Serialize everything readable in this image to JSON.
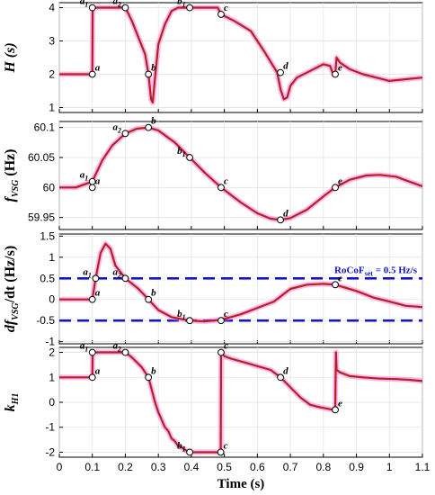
{
  "chart_data": {
    "type": "line",
    "xlabel": "Time (s)",
    "xlim": [
      0,
      1.1
    ],
    "xticks": [
      "0",
      "0.1",
      "0.2",
      "0.3",
      "0.4",
      "0.5",
      "0.6",
      "0.7",
      "0.8",
      "0.9",
      "1",
      "1.1"
    ],
    "colors": {
      "series": "#b22222",
      "glow": "#ff66d2",
      "threshold": "#1515c8",
      "marker_fill": "#ffffff"
    },
    "panels": [
      {
        "id": "H",
        "ylabel": "H (s)",
        "ylim": [
          0.85,
          4.15
        ],
        "yticks": [
          1,
          2,
          3,
          4
        ],
        "ytick_labels": [
          "1",
          "2",
          "3",
          "4"
        ],
        "x": [
          0,
          0.05,
          0.1,
          0.101,
          0.15,
          0.2,
          0.22,
          0.24,
          0.26,
          0.27,
          0.278,
          0.283,
          0.29,
          0.3,
          0.32,
          0.34,
          0.36,
          0.38,
          0.395,
          0.42,
          0.45,
          0.48,
          0.49,
          0.53,
          0.58,
          0.62,
          0.66,
          0.67,
          0.68,
          0.69,
          0.7,
          0.72,
          0.76,
          0.8,
          0.82,
          0.83,
          0.836,
          0.84,
          0.85,
          0.88,
          0.92,
          0.96,
          1.0,
          1.05,
          1.1
        ],
        "y": [
          2,
          2,
          2,
          4,
          4,
          4,
          3.6,
          3.1,
          2.6,
          2.0,
          1.25,
          1.15,
          1.9,
          2.9,
          3.5,
          3.9,
          4.0,
          4.0,
          4.0,
          4.0,
          4.0,
          4.0,
          3.8,
          3.6,
          3.3,
          2.7,
          2.05,
          1.55,
          1.25,
          1.3,
          1.65,
          1.9,
          2.1,
          2.3,
          2.25,
          2.0,
          2.0,
          2.5,
          2.35,
          2.15,
          2.0,
          1.9,
          1.8,
          1.85,
          1.9
        ],
        "markers": [
          {
            "label": "a",
            "x": 0.1,
            "y": 2.0
          },
          {
            "label": "a",
            "sub": "1",
            "x": 0.1,
            "y": 4.0
          },
          {
            "label": "a",
            "sub": "2",
            "x": 0.2,
            "y": 4.0
          },
          {
            "label": "b",
            "x": 0.27,
            "y": 2.0
          },
          {
            "label": "b",
            "sub": "1",
            "x": 0.395,
            "y": 4.0
          },
          {
            "label": "c",
            "x": 0.49,
            "y": 3.8
          },
          {
            "label": "d",
            "x": 0.67,
            "y": 2.05
          },
          {
            "label": "e",
            "x": 0.836,
            "y": 2.0
          }
        ]
      },
      {
        "id": "f",
        "ylabel": "f",
        "ylabel_sub": "VSG",
        "ylabel_unit": " (Hz)",
        "ylim": [
          59.93,
          60.11
        ],
        "yticks": [
          59.95,
          60.0,
          60.05,
          60.1
        ],
        "ytick_labels": [
          "59.95",
          "60",
          "60.05",
          "60.1"
        ],
        "x": [
          0,
          0.05,
          0.1,
          0.13,
          0.16,
          0.2,
          0.235,
          0.27,
          0.3,
          0.35,
          0.395,
          0.44,
          0.49,
          0.55,
          0.6,
          0.64,
          0.67,
          0.7,
          0.75,
          0.8,
          0.836,
          0.88,
          0.93,
          0.97,
          1.02,
          1.06,
          1.1
        ],
        "y": [
          60.0,
          60.0,
          60.01,
          60.045,
          60.07,
          60.09,
          60.098,
          60.1,
          60.095,
          60.075,
          60.05,
          60.025,
          60.0,
          59.975,
          59.957,
          59.948,
          59.946,
          59.949,
          59.963,
          59.985,
          60.0,
          60.013,
          60.02,
          60.021,
          60.018,
          60.01,
          60.002
        ],
        "markers": [
          {
            "label": "a",
            "x": 0.1,
            "y": 60.0
          },
          {
            "label": "a",
            "sub": "1",
            "x": 0.1,
            "y": 60.01
          },
          {
            "label": "a",
            "sub": "2",
            "x": 0.2,
            "y": 60.09
          },
          {
            "label": "b",
            "x": 0.27,
            "y": 60.1
          },
          {
            "label": "b",
            "sub": "1",
            "x": 0.395,
            "y": 60.05
          },
          {
            "label": "c",
            "x": 0.49,
            "y": 60.0
          },
          {
            "label": "d",
            "x": 0.67,
            "y": 59.946
          },
          {
            "label": "e",
            "x": 0.836,
            "y": 60.0
          }
        ]
      },
      {
        "id": "df",
        "ylabel": "df",
        "ylabel_sub": "VSG",
        "ylabel_unit": "/dt (Hz/s)",
        "ylim": [
          -1.05,
          1.55
        ],
        "yticks": [
          -1,
          -0.5,
          0,
          0.5,
          1,
          1.5
        ],
        "ytick_labels": [
          "-1",
          "-0.5",
          "0",
          "0.5",
          "1",
          "1.5"
        ],
        "threshold_values": [
          0.5,
          -0.5
        ],
        "threshold_label": "RoCoF",
        "threshold_label_sub": "set",
        "threshold_label_rest": " = 0.5 Hz/s",
        "x": [
          0,
          0.05,
          0.1,
          0.11,
          0.125,
          0.14,
          0.155,
          0.17,
          0.2,
          0.24,
          0.27,
          0.3,
          0.34,
          0.395,
          0.44,
          0.49,
          0.55,
          0.6,
          0.65,
          0.7,
          0.75,
          0.8,
          0.836,
          0.9,
          0.95,
          1.0,
          1.05,
          1.1
        ],
        "y": [
          0,
          0,
          0,
          0.5,
          1.1,
          1.32,
          1.2,
          0.8,
          0.5,
          0.25,
          0.0,
          -0.25,
          -0.42,
          -0.5,
          -0.52,
          -0.48,
          -0.35,
          -0.2,
          -0.05,
          0.25,
          0.35,
          0.37,
          0.35,
          0.2,
          0.05,
          -0.05,
          -0.15,
          -0.18
        ],
        "markers": [
          {
            "label": "a",
            "x": 0.1,
            "y": 0.0
          },
          {
            "label": "a",
            "sub": "1",
            "x": 0.11,
            "y": 0.5
          },
          {
            "label": "a",
            "sub": "2",
            "x": 0.2,
            "y": 0.5
          },
          {
            "label": "b",
            "x": 0.27,
            "y": 0.0
          },
          {
            "label": "b",
            "sub": "1",
            "x": 0.395,
            "y": -0.5
          },
          {
            "label": "c",
            "x": 0.49,
            "y": -0.5
          },
          {
            "label": "e",
            "x": 0.836,
            "y": 0.35
          }
        ]
      },
      {
        "id": "k",
        "ylabel": "k",
        "ylabel_sub": "H1",
        "ylabel_unit": "",
        "ylim": [
          -2.2,
          2.2
        ],
        "yticks": [
          -2,
          -1,
          0,
          1,
          2
        ],
        "ytick_labels": [
          "-2",
          "-1",
          "0",
          "1",
          "2"
        ],
        "x": [
          0,
          0.05,
          0.1,
          0.101,
          0.15,
          0.2,
          0.22,
          0.25,
          0.27,
          0.29,
          0.3,
          0.31,
          0.32,
          0.33,
          0.34,
          0.35,
          0.36,
          0.37,
          0.38,
          0.395,
          0.42,
          0.45,
          0.489,
          0.49,
          0.5,
          0.52,
          0.56,
          0.6,
          0.64,
          0.67,
          0.7,
          0.73,
          0.76,
          0.79,
          0.81,
          0.83,
          0.836,
          0.838,
          0.84,
          0.85,
          0.88,
          0.92,
          0.97,
          1.02,
          1.06,
          1.1
        ],
        "y": [
          1,
          1,
          1,
          2,
          2,
          2,
          1.8,
          1.4,
          1.0,
          0.0,
          -0.4,
          -0.7,
          -1.0,
          -1.15,
          -1.45,
          -1.55,
          -1.75,
          -1.8,
          -1.9,
          -2.0,
          -2.0,
          -2.0,
          -2.0,
          2.0,
          1.85,
          1.75,
          1.6,
          1.45,
          1.3,
          1.0,
          0.6,
          0.2,
          -0.1,
          -0.2,
          -0.25,
          -0.3,
          -0.3,
          2.0,
          1.3,
          1.2,
          1.05,
          1.0,
          0.95,
          0.93,
          0.9,
          0.85
        ],
        "markers": [
          {
            "label": "a",
            "x": 0.1,
            "y": 1.0
          },
          {
            "label": "a",
            "sub": "1",
            "x": 0.1,
            "y": 2.0
          },
          {
            "label": "a",
            "sub": "2",
            "x": 0.2,
            "y": 2.0
          },
          {
            "label": "b",
            "x": 0.27,
            "y": 1.0
          },
          {
            "label": "b",
            "sub": "1",
            "x": 0.395,
            "y": -2.0
          },
          {
            "label": "c",
            "x": 0.49,
            "y": 2.0
          },
          {
            "label": "c",
            "x": 0.489,
            "y": -2.0
          },
          {
            "label": "d",
            "x": 0.67,
            "y": 1.0
          },
          {
            "label": "e",
            "x": 0.836,
            "y": -0.3
          }
        ]
      }
    ]
  }
}
